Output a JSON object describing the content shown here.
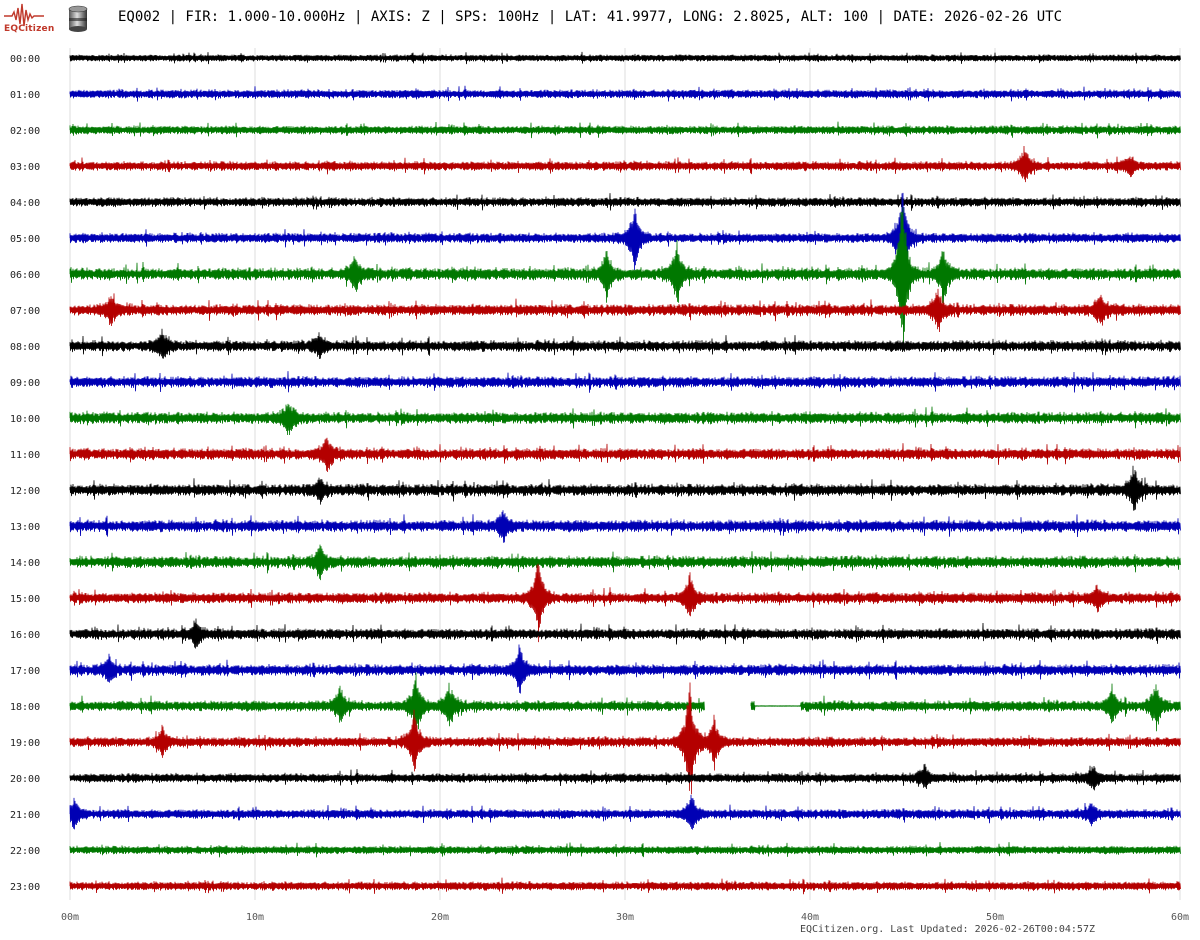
{
  "header": {
    "logo_text": "EQCitizen",
    "title": "EQ002 | FIR: 1.000-10.000Hz | AXIS: Z | SPS: 100Hz | LAT: 41.9977, LONG: 2.8025, ALT: 100 | DATE: 2026-02-26 UTC",
    "icons": [
      "seismograph-logo-icon",
      "sensor-icon"
    ]
  },
  "footer": {
    "text": "EQCitizen.org. Last Updated: 2026-02-26T00:04:57Z"
  },
  "colors": {
    "trace_cycle": [
      "#000000",
      "#0000b4",
      "#007800",
      "#b40000"
    ],
    "grid": "#dcdcdc",
    "logo": "#c0392b"
  },
  "chart_data": {
    "type": "line",
    "title": "",
    "xlabel": "",
    "ylabel": "",
    "grid": true,
    "x_ticks": [
      "00m",
      "10m",
      "20m",
      "30m",
      "40m",
      "50m",
      "60m"
    ],
    "x_range_minutes": [
      0,
      60
    ],
    "rows": [
      "00:00",
      "01:00",
      "02:00",
      "03:00",
      "04:00",
      "05:00",
      "06:00",
      "07:00",
      "08:00",
      "09:00",
      "10:00",
      "11:00",
      "12:00",
      "13:00",
      "14:00",
      "15:00",
      "16:00",
      "17:00",
      "18:00",
      "19:00",
      "20:00",
      "21:00",
      "22:00",
      "23:00"
    ],
    "row_noise_level": [
      0.15,
      0.25,
      0.25,
      0.28,
      0.28,
      0.32,
      0.45,
      0.4,
      0.38,
      0.38,
      0.42,
      0.4,
      0.42,
      0.42,
      0.42,
      0.38,
      0.38,
      0.38,
      0.35,
      0.32,
      0.28,
      0.3,
      0.22,
      0.25
    ],
    "row_end_minutes": {
      "0": 60,
      "23": 60
    },
    "data_gaps": [
      {
        "row": "18:00",
        "from_min": 34.3,
        "to_min": 36.8
      },
      {
        "row": "18:00",
        "from_min": 37.0,
        "to_min": 39.5,
        "flat": true
      }
    ],
    "events": [
      {
        "row": "03:00",
        "minute": 51.6,
        "amp": 18
      },
      {
        "row": "03:00",
        "minute": 57.3,
        "amp": 10
      },
      {
        "row": "05:00",
        "minute": 30.5,
        "amp": 32
      },
      {
        "row": "05:00",
        "minute": 45.0,
        "amp": 50
      },
      {
        "row": "06:00",
        "minute": 45.0,
        "amp": 85
      },
      {
        "row": "06:00",
        "minute": 32.8,
        "amp": 32
      },
      {
        "row": "06:00",
        "minute": 47.2,
        "amp": 28
      },
      {
        "row": "06:00",
        "minute": 15.4,
        "amp": 18
      },
      {
        "row": "06:00",
        "minute": 29.0,
        "amp": 22
      },
      {
        "row": "07:00",
        "minute": 46.9,
        "amp": 22
      },
      {
        "row": "07:00",
        "minute": 55.7,
        "amp": 18
      },
      {
        "row": "07:00",
        "minute": 2.2,
        "amp": 14
      },
      {
        "row": "08:00",
        "minute": 5.0,
        "amp": 14
      },
      {
        "row": "08:00",
        "minute": 13.5,
        "amp": 10
      },
      {
        "row": "10:00",
        "minute": 11.8,
        "amp": 16
      },
      {
        "row": "11:00",
        "minute": 13.9,
        "amp": 18
      },
      {
        "row": "12:00",
        "minute": 57.5,
        "amp": 22
      },
      {
        "row": "12:00",
        "minute": 13.5,
        "amp": 12
      },
      {
        "row": "13:00",
        "minute": 23.4,
        "amp": 16
      },
      {
        "row": "14:00",
        "minute": 13.5,
        "amp": 16
      },
      {
        "row": "15:00",
        "minute": 25.3,
        "amp": 40
      },
      {
        "row": "15:00",
        "minute": 33.5,
        "amp": 22
      },
      {
        "row": "15:00",
        "minute": 55.5,
        "amp": 12
      },
      {
        "row": "16:00",
        "minute": 6.8,
        "amp": 12
      },
      {
        "row": "17:00",
        "minute": 24.3,
        "amp": 25
      },
      {
        "row": "17:00",
        "minute": 2.1,
        "amp": 12
      },
      {
        "row": "18:00",
        "minute": 18.7,
        "amp": 30
      },
      {
        "row": "18:00",
        "minute": 14.6,
        "amp": 20
      },
      {
        "row": "18:00",
        "minute": 20.5,
        "amp": 20
      },
      {
        "row": "18:00",
        "minute": 58.7,
        "amp": 22
      },
      {
        "row": "18:00",
        "minute": 56.3,
        "amp": 18
      },
      {
        "row": "19:00",
        "minute": 33.5,
        "amp": 65
      },
      {
        "row": "19:00",
        "minute": 34.8,
        "amp": 25
      },
      {
        "row": "19:00",
        "minute": 5.0,
        "amp": 14
      },
      {
        "row": "19:00",
        "minute": 18.6,
        "amp": 32
      },
      {
        "row": "20:00",
        "minute": 46.2,
        "amp": 12
      },
      {
        "row": "20:00",
        "minute": 55.3,
        "amp": 12
      },
      {
        "row": "21:00",
        "minute": 33.6,
        "amp": 18
      },
      {
        "row": "21:00",
        "minute": 0.2,
        "amp": 14
      },
      {
        "row": "21:00",
        "minute": 55.2,
        "amp": 10
      }
    ]
  }
}
